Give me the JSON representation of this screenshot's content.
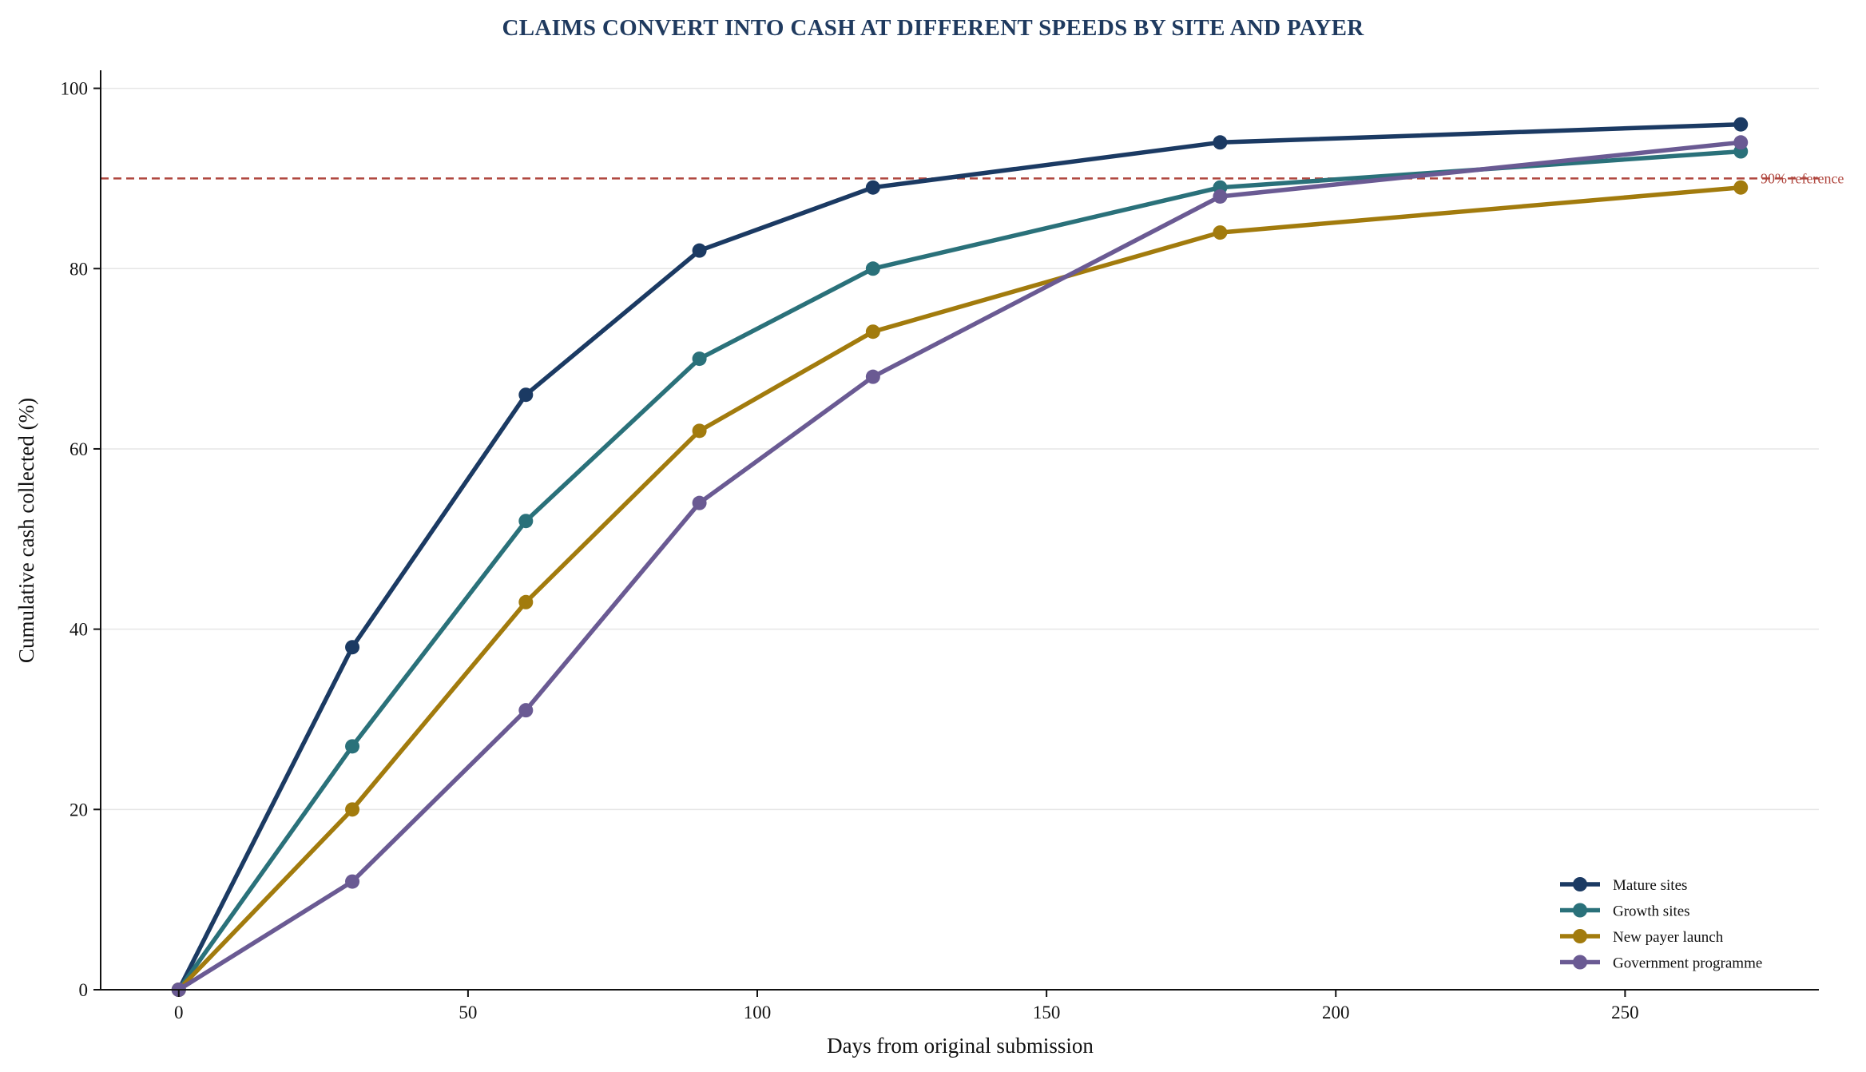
{
  "chart_data": {
    "type": "line",
    "title": "CLAIMS CONVERT INTO CASH AT DIFFERENT SPEEDS BY SITE AND PAYER",
    "xlabel": "Days from original submission",
    "ylabel": "Cumulative cash collected (%)",
    "xlim": [
      -13.5,
      283.5
    ],
    "ylim": [
      0,
      102
    ],
    "xticks": [
      0,
      50,
      100,
      150,
      200,
      250
    ],
    "yticks": [
      0,
      20,
      40,
      60,
      80,
      100
    ],
    "grid": "horizontal",
    "legend_position": "bottom-right",
    "x": [
      0,
      30,
      60,
      90,
      120,
      180,
      270
    ],
    "series": [
      {
        "name": "Mature sites",
        "color": "#1b3a63",
        "values": [
          0,
          38,
          66,
          82,
          89,
          94,
          96
        ]
      },
      {
        "name": "Growth sites",
        "color": "#2a717a",
        "values": [
          0,
          27,
          52,
          70,
          80,
          89,
          93
        ]
      },
      {
        "name": "New payer launch",
        "color": "#a27b0d",
        "values": [
          0,
          20,
          43,
          62,
          73,
          84,
          89
        ]
      },
      {
        "name": "Government programme",
        "color": "#6a5a93",
        "values": [
          0,
          12,
          31,
          54,
          68,
          88,
          94
        ]
      }
    ],
    "reference_line": {
      "value": 90,
      "label": "90% reference",
      "color": "#b0473f"
    }
  }
}
